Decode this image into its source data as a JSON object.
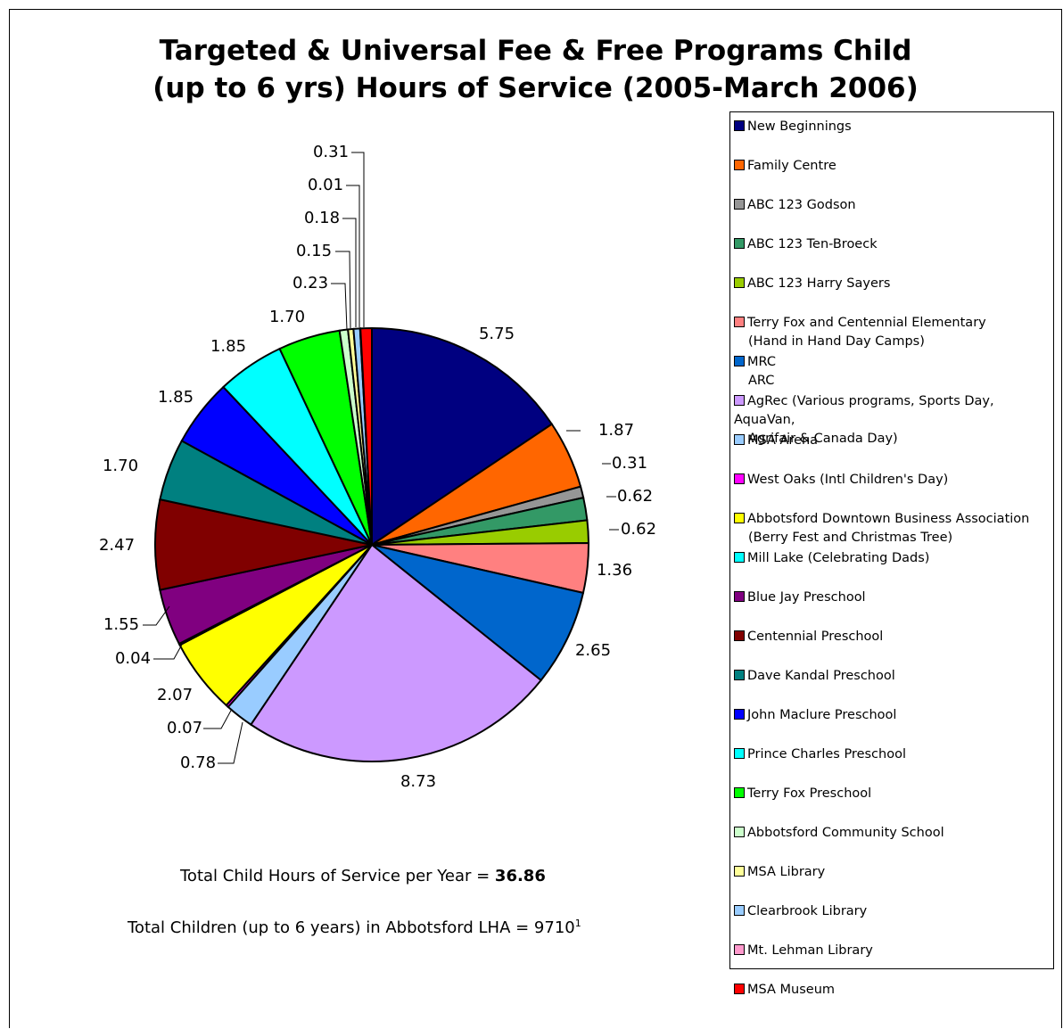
{
  "chart_data": {
    "type": "pie",
    "title_line1": "Targeted & Universal Fee & Free Programs Child",
    "title_line2": "(up to 6 yrs) Hours of Service (2005-March 2006)",
    "legend_position": "right",
    "slices": [
      {
        "label": "New Beginnings",
        "value": 5.75,
        "color": "#000080"
      },
      {
        "label": "Family Centre",
        "value": 1.87,
        "color": "#FF6600"
      },
      {
        "label": "ABC 123 Godson",
        "value": 0.31,
        "color": "#969696"
      },
      {
        "label": "ABC 123 Ten-Broeck",
        "value": 0.62,
        "color": "#339966"
      },
      {
        "label": "ABC 123 Harry Sayers",
        "value": 0.62,
        "color": "#99CC00"
      },
      {
        "label": "Terry Fox and Centennial Elementary",
        "label2": "(Hand in Hand Day Camps)",
        "value": 1.36,
        "color": "#FF8080"
      },
      {
        "label": "MRC",
        "label2": "ARC",
        "value": 2.65,
        "color": "#0066CC"
      },
      {
        "label": "AgRec (Various programs, Sports Day, AquaVan,",
        "label2": "Agrifair & Canada Day)",
        "value": 8.73,
        "color": "#CC99FF"
      },
      {
        "label": "MSA Arena",
        "value": 0.78,
        "color": "#99CCFF"
      },
      {
        "label": "West Oaks (Intl Children's Day)",
        "value": 0.07,
        "color": "#FF00FF"
      },
      {
        "label": "Abbotsford Downtown Business Association",
        "label2": "(Berry Fest and Christmas Tree)",
        "value": 2.07,
        "color": "#FFFF00"
      },
      {
        "label": "Mill Lake (Celebrating Dads)",
        "value": 0.04,
        "color": "#00FFFF"
      },
      {
        "label": "Blue Jay Preschool",
        "value": 1.55,
        "color": "#800080"
      },
      {
        "label": "Centennial Preschool",
        "value": 2.47,
        "color": "#800000"
      },
      {
        "label": "Dave Kandal Preschool",
        "value": 1.7,
        "color": "#008080"
      },
      {
        "label": "John Maclure Preschool",
        "value": 1.85,
        "color": "#0000FF"
      },
      {
        "label": "Prince Charles Preschool",
        "value": 1.85,
        "color": "#00FFFF"
      },
      {
        "label": "Terry Fox Preschool",
        "value": 1.7,
        "color": "#00FF00"
      },
      {
        "label": "Abbotsford Community School",
        "value": 0.23,
        "color": "#CCFFCC"
      },
      {
        "label": "MSA Library",
        "value": 0.15,
        "color": "#FFFF99"
      },
      {
        "label": "Clearbrook Library",
        "value": 0.18,
        "color": "#99CCFF"
      },
      {
        "label": "Mt. Lehman Library",
        "value": 0.01,
        "color": "#FF99CC"
      },
      {
        "label": "MSA Museum",
        "value": 0.31,
        "color": "#FF0000"
      }
    ],
    "data_labels": [
      "5.75",
      "1.87",
      "0.31",
      "0.62",
      "0.62",
      "1.36",
      "2.65",
      "8.73",
      "0.78",
      "0.07",
      "2.07",
      "0.04",
      "1.55",
      "2.47",
      "1.70",
      "1.85",
      "1.85",
      "1.70",
      "0.23",
      "0.15",
      "0.18",
      "0.01",
      "0.31"
    ]
  },
  "summary": {
    "hours_prefix": "Total Child Hours of Service per Year = ",
    "hours_value": "36.86",
    "children_text": "Total Children (up to 6 years) in Abbotsford LHA  = 9710",
    "children_sup": "1"
  }
}
